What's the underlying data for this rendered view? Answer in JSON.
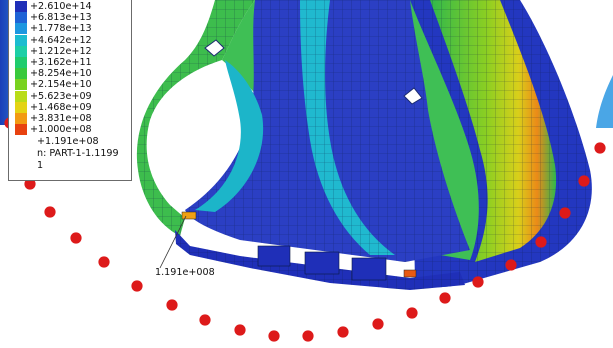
{
  "legend": {
    "entries": [
      {
        "label": "+2.610e+14",
        "color": "#1f2fb8"
      },
      {
        "label": "+6.813e+13",
        "color": "#1e63d6"
      },
      {
        "label": "+1.778e+13",
        "color": "#1c97e0"
      },
      {
        "label": "+4.642e+12",
        "color": "#1bbcd0"
      },
      {
        "label": "+1.212e+12",
        "color": "#1ccfa6"
      },
      {
        "label": "+3.162e+11",
        "color": "#1fcc6d"
      },
      {
        "label": "+8.254e+10",
        "color": "#39c93c"
      },
      {
        "label": "+2.154e+10",
        "color": "#79d21f"
      },
      {
        "label": "+5.623e+09",
        "color": "#b9dc18"
      },
      {
        "label": "+1.468e+09",
        "color": "#e4d314"
      },
      {
        "label": "+3.831e+08",
        "color": "#f29a12"
      },
      {
        "label": "+1.000e+08",
        "color": "#e8420f"
      }
    ],
    "extra_value": "+1.191e+08",
    "part_label": "n: PART-1-1.1199",
    "index": "1"
  },
  "callout": {
    "value": "1.191e+008"
  },
  "colors": {
    "dots": "#dd1a1a",
    "inner_blue": "#2b3fc4",
    "rim_green": "#3dbd4d",
    "side_blue": "#1f63d2"
  }
}
